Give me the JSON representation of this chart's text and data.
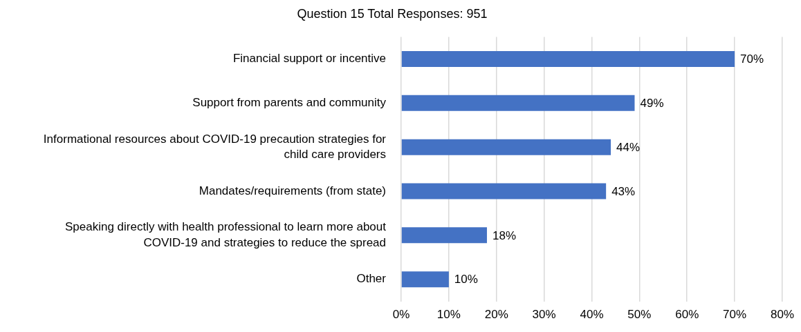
{
  "chart_data": {
    "type": "bar",
    "orientation": "horizontal",
    "title": "Question 15 Total Responses: 951",
    "categories": [
      "Financial support or incentive",
      "Support from parents and community",
      "Informational resources about COVID-19 precaution strategies for child care providers",
      "Mandates/requirements (from state)",
      "Speaking directly with health professional to learn more about COVID-19 and strategies to reduce the spread",
      "Other"
    ],
    "values": [
      70,
      49,
      44,
      43,
      18,
      10
    ],
    "value_labels": [
      "70%",
      "49%",
      "44%",
      "43%",
      "18%",
      "10%"
    ],
    "color": "#4472c4",
    "xlim": [
      0,
      80
    ],
    "xticks": [
      {
        "value": 0,
        "label": "0%"
      },
      {
        "value": 10,
        "label": "10%"
      },
      {
        "value": 20,
        "label": "20%"
      },
      {
        "value": 30,
        "label": "30%"
      },
      {
        "value": 40,
        "label": "40%"
      },
      {
        "value": 50,
        "label": "50%"
      },
      {
        "value": 60,
        "label": "60%"
      },
      {
        "value": 70,
        "label": "70%"
      },
      {
        "value": 80,
        "label": "80%"
      }
    ],
    "grid": "x"
  }
}
